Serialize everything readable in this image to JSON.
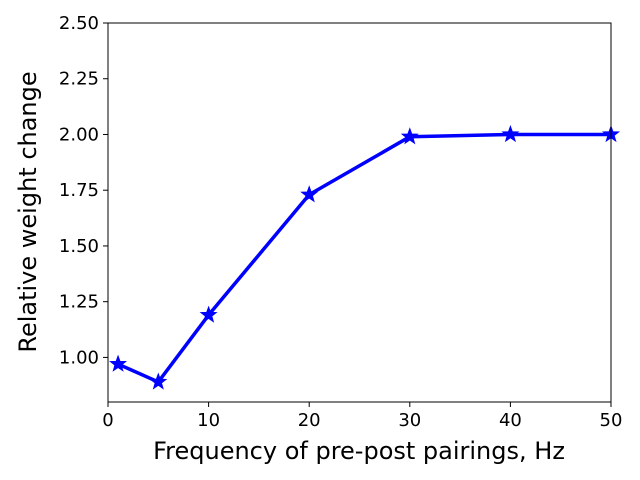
{
  "chart_data": {
    "type": "line",
    "title": "",
    "xlabel": "Frequency of pre-post pairings, Hz",
    "ylabel": "Relative weight change",
    "xlim": [
      0,
      50
    ],
    "ylim": [
      0.8,
      2.5
    ],
    "xticks": [
      0,
      10,
      20,
      30,
      40,
      50
    ],
    "yticks": [
      1.0,
      1.25,
      1.5,
      1.75,
      2.0,
      2.25,
      2.5
    ],
    "xtick_labels": [
      "0",
      "10",
      "20",
      "30",
      "40",
      "50"
    ],
    "ytick_labels": [
      "1.00",
      "1.25",
      "1.50",
      "1.75",
      "2.00",
      "2.25",
      "2.50"
    ],
    "grid": false,
    "series": [
      {
        "color": "#0000ff",
        "marker": "star",
        "x": [
          1,
          5,
          10,
          20,
          30,
          40,
          50
        ],
        "y": [
          0.97,
          0.89,
          1.19,
          1.73,
          1.99,
          2.0,
          2.0
        ]
      }
    ]
  }
}
